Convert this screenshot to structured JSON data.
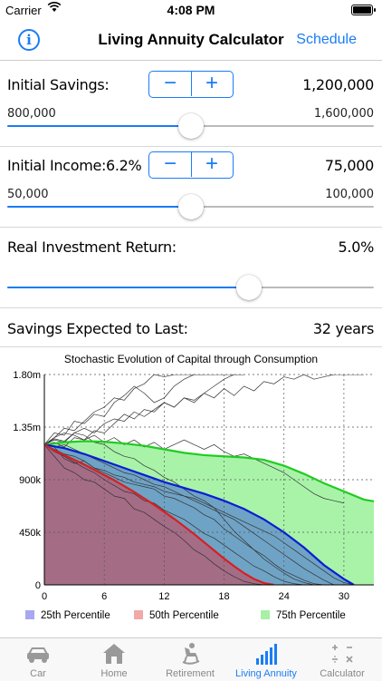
{
  "status": {
    "carrier": "Carrier",
    "time": "4:08 PM"
  },
  "nav": {
    "info_label": "i",
    "title": "Living Annuity Calculator",
    "right_button": "Schedule"
  },
  "savings": {
    "label": "Initial Savings:",
    "value": "1,200,000",
    "min_label": "800,000",
    "max_label": "1,600,000",
    "slider_fraction": 0.5
  },
  "income": {
    "label": "Initial Income:",
    "rate": "6.2%",
    "value": "75,000",
    "min_label": "50,000",
    "max_label": "100,000",
    "slider_fraction": 0.5
  },
  "return": {
    "label": "Real Investment Return:",
    "value": "5.0%",
    "slider_fraction": 0.66
  },
  "expected": {
    "label": "Savings Expected to Last:",
    "value": "32 years"
  },
  "stepper": {
    "minus": "−",
    "plus": "+"
  },
  "chart_data": {
    "type": "area",
    "title": "Stochastic Evolution of Capital through Consumption",
    "x_ticks": [
      "0",
      "6",
      "12",
      "18",
      "24",
      "30"
    ],
    "y_ticks": [
      "0",
      "450k",
      "900k",
      "1.35m",
      "1.80m"
    ],
    "xlim": [
      0,
      33
    ],
    "ylim": [
      0,
      1800000
    ],
    "grid": true,
    "legend_position": "bottom",
    "series": [
      {
        "name": "25th Percentile",
        "color": "#a8a8f0",
        "line_color": "#d62020",
        "x": [
          0,
          1,
          2,
          3,
          4,
          5,
          6,
          7,
          8,
          9,
          10,
          11,
          12,
          13,
          14,
          15,
          16,
          17,
          18,
          19,
          20,
          21,
          22,
          23
        ],
        "values": [
          1200000,
          1150000,
          1110000,
          1070000,
          1030000,
          985000,
          940000,
          895000,
          845000,
          795000,
          740000,
          685000,
          625000,
          565000,
          500000,
          435000,
          365000,
          295000,
          225000,
          160000,
          100000,
          50000,
          15000,
          0
        ]
      },
      {
        "name": "50th Percentile",
        "color": "#f0a8a8",
        "line_color": "#0a1ed2",
        "x": [
          0,
          2,
          4,
          6,
          8,
          10,
          12,
          14,
          16,
          18,
          20,
          22,
          24,
          26,
          28,
          30,
          31
        ],
        "values": [
          1200000,
          1170000,
          1120000,
          1060000,
          1000000,
          940000,
          880000,
          830000,
          780000,
          720000,
          650000,
          560000,
          450000,
          320000,
          170000,
          50000,
          0
        ]
      },
      {
        "name": "75th Percentile",
        "color": "#a8f0a8",
        "line_color": "#20cc20",
        "x": [
          0,
          2,
          4,
          6,
          8,
          10,
          12,
          14,
          16,
          18,
          20,
          22,
          24,
          26,
          28,
          30,
          32,
          33
        ],
        "values": [
          1200000,
          1220000,
          1230000,
          1225000,
          1210000,
          1190000,
          1160000,
          1130000,
          1110000,
          1100000,
          1090000,
          1070000,
          1020000,
          950000,
          870000,
          800000,
          730000,
          715000
        ]
      }
    ],
    "sample_paths": [
      {
        "x": [
          0,
          1,
          2,
          3,
          4,
          5,
          6,
          7,
          8,
          9,
          10,
          11,
          12,
          13,
          14,
          15,
          16,
          17,
          18,
          19,
          20,
          21,
          22,
          23
        ],
        "values": [
          1200000,
          1100000,
          1000000,
          960000,
          900000,
          880000,
          820000,
          760000,
          740000,
          650000,
          620000,
          560000,
          500000,
          450000,
          380000,
          300000,
          250000,
          180000,
          120000,
          70000,
          30000,
          10000,
          0,
          0
        ]
      },
      {
        "x": [
          0,
          1,
          2,
          3,
          4,
          5,
          6,
          7,
          8,
          9,
          10,
          11,
          12,
          13,
          14,
          15,
          16,
          17,
          18,
          19,
          20,
          21,
          22,
          23,
          24,
          25,
          26
        ],
        "values": [
          1200000,
          1140000,
          1100000,
          1050000,
          1000000,
          960000,
          900000,
          850000,
          800000,
          780000,
          720000,
          700000,
          640000,
          600000,
          560000,
          500000,
          440000,
          400000,
          340000,
          280000,
          220000,
          160000,
          120000,
          70000,
          30000,
          10000,
          0
        ]
      },
      {
        "x": [
          0,
          1,
          2,
          3,
          4,
          5,
          6,
          7,
          8,
          9,
          10,
          11,
          12,
          13,
          14,
          15,
          16,
          17,
          18,
          19,
          20,
          21,
          22,
          23,
          24,
          25,
          26,
          27,
          28
        ],
        "values": [
          1200000,
          1180000,
          1080000,
          1040000,
          1060000,
          1000000,
          960000,
          920000,
          880000,
          860000,
          840000,
          820000,
          760000,
          740000,
          700000,
          660000,
          600000,
          560000,
          480000,
          420000,
          360000,
          300000,
          250000,
          180000,
          120000,
          80000,
          40000,
          10000,
          0
        ]
      },
      {
        "x": [
          0,
          1,
          2,
          3,
          4,
          5,
          6,
          7,
          8,
          9,
          10,
          11,
          12,
          13,
          14,
          15,
          16,
          17,
          18,
          19,
          20,
          21,
          22,
          23,
          24,
          25,
          26,
          27,
          28,
          29
        ],
        "values": [
          1200000,
          1160000,
          1120000,
          1100000,
          1060000,
          1000000,
          980000,
          940000,
          920000,
          880000,
          860000,
          840000,
          800000,
          780000,
          760000,
          720000,
          680000,
          640000,
          600000,
          560000,
          500000,
          440000,
          380000,
          320000,
          260000,
          200000,
          140000,
          90000,
          40000,
          0
        ]
      },
      {
        "x": [
          0,
          1,
          2,
          3,
          4,
          5,
          6,
          7,
          8,
          9,
          10,
          11,
          12,
          13,
          14,
          15,
          16,
          17,
          18,
          19,
          20,
          21,
          22,
          23,
          24,
          25,
          26,
          27
        ],
        "values": [
          1200000,
          1250000,
          1230000,
          1300000,
          1280000,
          1220000,
          1200000,
          1140000,
          1100000,
          1080000,
          1020000,
          980000,
          920000,
          880000,
          820000,
          760000,
          720000,
          660000,
          560000,
          460000,
          380000,
          300000,
          220000,
          160000,
          100000,
          50000,
          20000,
          0
        ]
      },
      {
        "x": [
          0,
          1,
          2,
          3,
          4,
          5,
          6,
          7,
          8,
          9,
          10,
          11,
          12,
          13,
          14,
          15,
          16,
          17,
          18,
          19,
          20
        ],
        "values": [
          1200000,
          1300000,
          1280000,
          1400000,
          1380000,
          1460000,
          1440000,
          1560000,
          1620000,
          1700000,
          1640000,
          1560000,
          1600000,
          1700000,
          1760000,
          1800000,
          1840000,
          1820000,
          1860000,
          1900000,
          1950000
        ]
      },
      {
        "x": [
          0,
          1,
          2,
          3,
          4,
          5,
          6,
          7,
          8,
          9,
          10,
          11,
          12,
          13,
          14,
          15,
          16
        ],
        "values": [
          1200000,
          1260000,
          1340000,
          1320000,
          1400000,
          1480000,
          1520000,
          1600000,
          1580000,
          1680000,
          1720000,
          1800000,
          1780000,
          1850000,
          1820000,
          1880000,
          1900000
        ]
      },
      {
        "x": [
          0,
          1,
          2,
          3,
          4,
          5,
          6,
          7,
          8,
          9,
          10,
          11,
          12,
          13,
          14,
          15,
          16,
          17,
          18,
          19,
          20,
          21,
          22,
          23,
          24,
          25,
          26,
          27,
          28,
          29,
          30,
          31,
          32
        ],
        "values": [
          1200000,
          1240000,
          1220000,
          1300000,
          1340000,
          1300000,
          1380000,
          1420000,
          1400000,
          1480000,
          1440000,
          1500000,
          1560000,
          1520000,
          1600000,
          1560000,
          1640000,
          1600000,
          1680000,
          1620000,
          1700000,
          1660000,
          1740000,
          1720000,
          1780000,
          1760000,
          1800000,
          1760000,
          1780000,
          1800000,
          1820000,
          1800000,
          1820000
        ]
      },
      {
        "x": [
          0,
          1,
          2,
          3,
          4,
          5,
          6,
          7,
          8,
          9,
          10,
          11,
          12,
          13,
          14,
          15,
          16,
          17,
          18,
          19,
          20
        ],
        "values": [
          1200000,
          1220000,
          1180000,
          1260000,
          1240000,
          1320000,
          1300000,
          1380000,
          1460000,
          1420000,
          1500000,
          1480000,
          1560000,
          1520000,
          1600000,
          1580000,
          1640000,
          1700000,
          1760000,
          1820000,
          1880000
        ]
      },
      {
        "x": [
          0,
          1,
          2,
          3,
          4,
          5,
          6,
          7,
          8,
          9,
          10,
          11,
          12,
          13,
          14,
          15,
          16,
          17,
          18,
          19,
          20,
          21,
          22,
          23,
          24,
          25,
          26,
          27,
          28,
          29,
          30
        ],
        "values": [
          1200000,
          1260000,
          1300000,
          1280000,
          1240000,
          1280000,
          1220000,
          1260000,
          1200000,
          1240000,
          1180000,
          1220000,
          1160000,
          1200000,
          1240000,
          1200000,
          1160000,
          1200000,
          1140000,
          1100000,
          1120000,
          1080000,
          1040000,
          1000000,
          960000,
          900000,
          840000,
          780000,
          740000,
          720000,
          700000
        ]
      },
      {
        "x": [
          0,
          1,
          2,
          3,
          4,
          5,
          6,
          7,
          8,
          9,
          10,
          11,
          12,
          13,
          14,
          15,
          16,
          17,
          18,
          19,
          20,
          21,
          22,
          23,
          24,
          25,
          26,
          27,
          28,
          29,
          30,
          31
        ],
        "values": [
          1200000,
          1180000,
          1200000,
          1160000,
          1120000,
          1080000,
          1040000,
          1000000,
          960000,
          940000,
          900000,
          860000,
          840000,
          800000,
          760000,
          740000,
          700000,
          660000,
          620000,
          580000,
          540000,
          500000,
          460000,
          420000,
          360000,
          300000,
          240000,
          180000,
          120000,
          60000,
          20000,
          0
        ]
      }
    ]
  },
  "tabs": [
    {
      "label": "Car",
      "icon": "car-icon",
      "active": false
    },
    {
      "label": "Home",
      "icon": "home-icon",
      "active": false
    },
    {
      "label": "Retirement",
      "icon": "rocking-chair-icon",
      "active": false
    },
    {
      "label": "Living Annuity",
      "icon": "bar-chart-icon",
      "active": true
    },
    {
      "label": "Calculator",
      "icon": "calculator-icon",
      "active": false
    }
  ],
  "colors": {
    "accent": "#1a7cf5"
  }
}
